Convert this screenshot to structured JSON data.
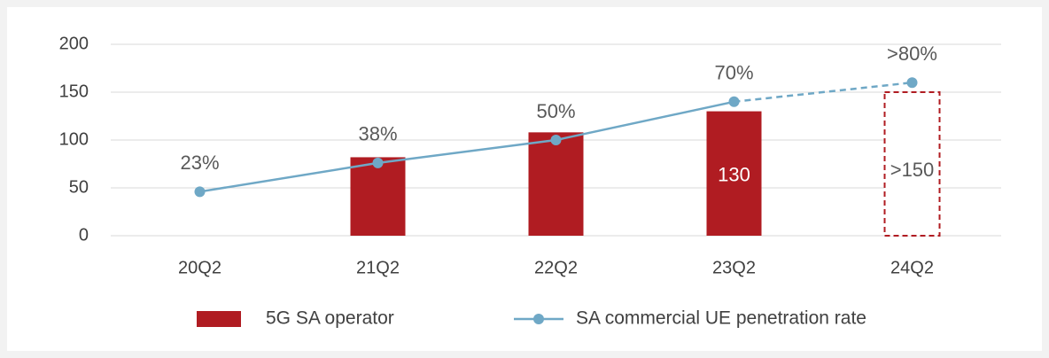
{
  "chart_data": {
    "type": "bar",
    "categories": [
      "20Q2",
      "21Q2",
      "22Q2",
      "23Q2",
      "24Q2"
    ],
    "ylim": [
      0,
      200
    ],
    "yticks": [
      0,
      50,
      100,
      150,
      200
    ],
    "y2lim": [
      0,
      100
    ],
    "grid": true,
    "legend": "bottom",
    "series": [
      {
        "name": "5G SA operator",
        "type": "bar",
        "color": "#b01c22",
        "values": [
          null,
          82,
          108,
          130,
          150
        ],
        "value_labels": [
          null,
          null,
          null,
          "130",
          ">150"
        ],
        "dashed": [
          false,
          false,
          false,
          false,
          true
        ]
      },
      {
        "name": "SA commercial UE penetration rate",
        "type": "line",
        "axis": "y2",
        "color": "#6fa8c6",
        "values": [
          23,
          38,
          50,
          70,
          80
        ],
        "value_labels": [
          "23%",
          "38%",
          "50%",
          "70%",
          ">80%"
        ],
        "dashed": [
          false,
          false,
          false,
          false,
          true
        ]
      }
    ]
  }
}
